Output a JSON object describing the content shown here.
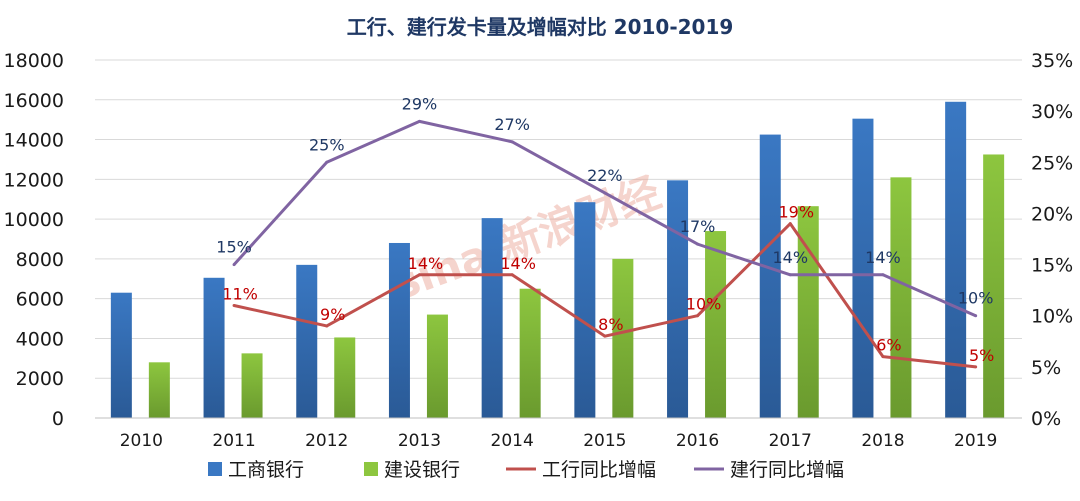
{
  "chart_data": {
    "type": "bar",
    "title": "工行、建行发卡量及增幅对比 2010-2019",
    "categories": [
      "2010",
      "2011",
      "2012",
      "2013",
      "2014",
      "2015",
      "2016",
      "2017",
      "2018",
      "2019"
    ],
    "y_left": {
      "ylim": [
        0,
        18000
      ],
      "ticks": [
        "0",
        "2000",
        "4000",
        "6000",
        "8000",
        "10000",
        "12000",
        "14000",
        "16000",
        "18000"
      ]
    },
    "y_right": {
      "ylim": [
        0,
        35
      ],
      "ticks": [
        "0%",
        "5%",
        "10%",
        "15%",
        "20%",
        "25%",
        "30%",
        "35%"
      ]
    },
    "grid": true,
    "legend_position": "bottom",
    "series": [
      {
        "name": "工商银行",
        "type": "bar",
        "axis": "left",
        "color": "#3a78c3",
        "values": [
          6300,
          7050,
          7700,
          8800,
          10050,
          10850,
          11950,
          14250,
          15050,
          15900
        ]
      },
      {
        "name": "建设银行",
        "type": "bar",
        "axis": "left",
        "color": "#8dc63f",
        "values": [
          2800,
          3250,
          4050,
          5200,
          6500,
          8000,
          9400,
          10650,
          12100,
          13250
        ]
      },
      {
        "name": "工行同比增幅",
        "type": "line",
        "axis": "right",
        "color": "#c0504d",
        "x": [
          "2011",
          "2012",
          "2013",
          "2014",
          "2015",
          "2016",
          "2017",
          "2018",
          "2019"
        ],
        "values": [
          11,
          9,
          14,
          14,
          8,
          10,
          19,
          6,
          5
        ],
        "labels": [
          "11%",
          "9%",
          "14%",
          "14%",
          "8%",
          "10%",
          "19%",
          "6%",
          "5%"
        ]
      },
      {
        "name": "建行同比增幅",
        "type": "line",
        "axis": "right",
        "color": "#8064a2",
        "x": [
          "2011",
          "2012",
          "2013",
          "2014",
          "2015",
          "2016",
          "2017",
          "2018",
          "2019"
        ],
        "values": [
          15,
          25,
          29,
          27,
          22,
          17,
          14,
          14,
          10
        ],
        "labels": [
          "15%",
          "25%",
          "29%",
          "27%",
          "22%",
          "17%",
          "14%",
          "14%",
          "10%"
        ]
      }
    ]
  },
  "watermark": {
    "text": "sina 新浪财经",
    "color": "#e8a090"
  }
}
